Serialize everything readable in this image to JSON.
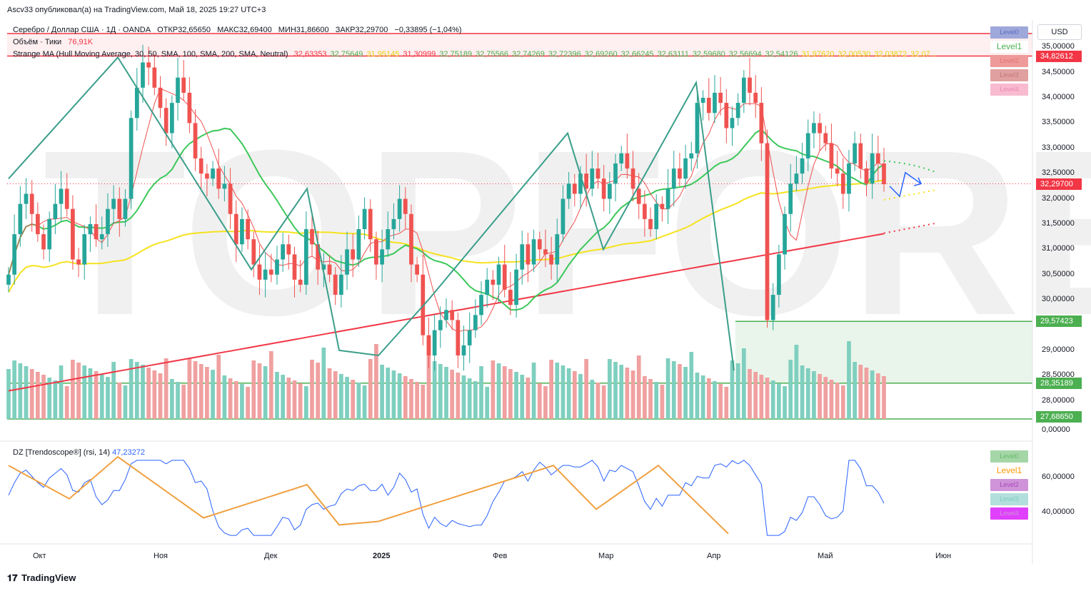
{
  "header": {
    "publisher_line": "Ascv33 опубликовал(а) на TradingView.com, Май 18, 2025 19:27 UTC+3"
  },
  "symbol_line": {
    "title": "Серебро / Доллар США · 1Д · OANDA",
    "open": "ОТКР32,65650",
    "high": "МАКС32,69400",
    "low": "МИН31,86600",
    "close": "ЗАКР32,29700",
    "change": "−0,33895 (−1,04%)"
  },
  "volume_line": {
    "label": "Объём · Тики",
    "value": "76,91K"
  },
  "ma_line": {
    "label": "Strange MA (Hull Moving Average, 30, 50, SMA, 100, SMA, 200, SMA, Neutral)",
    "values": [
      {
        "v": "32,63353",
        "color": "#f23645"
      },
      {
        "v": "32,75649",
        "color": "#4caf50"
      },
      {
        "v": "31,95145",
        "color": "#e6d30c"
      },
      {
        "v": "31,30999",
        "color": "#f23645"
      },
      {
        "v": "32,75189",
        "color": "#4caf50"
      },
      {
        "v": "32,75566",
        "color": "#4caf50"
      },
      {
        "v": "32,74269",
        "color": "#4caf50"
      },
      {
        "v": "32,72396",
        "color": "#4caf50"
      },
      {
        "v": "32,69260",
        "color": "#4caf50"
      },
      {
        "v": "32,66245",
        "color": "#4caf50"
      },
      {
        "v": "32,63111",
        "color": "#4caf50"
      },
      {
        "v": "32,59680",
        "color": "#4caf50"
      },
      {
        "v": "32,56694",
        "color": "#4caf50"
      },
      {
        "v": "32,54126",
        "color": "#4caf50"
      },
      {
        "v": "31,97620",
        "color": "#e6d30c"
      },
      {
        "v": "32,00530",
        "color": "#e6d30c"
      },
      {
        "v": "32,03872",
        "color": "#e6d30c"
      },
      {
        "v": "32,07...",
        "color": "#e6d30c"
      }
    ]
  },
  "currency": "USD",
  "price_axis": {
    "labels": [
      "35,00000",
      "34,50000",
      "34,00000",
      "33,50000",
      "33,00000",
      "32,50000",
      "32,00000",
      "31,50000",
      "31,00000",
      "30,50000",
      "30,00000",
      "29,00000",
      "28,50000",
      "28,00000",
      "0,00000"
    ],
    "values": [
      35.0,
      34.5,
      34.0,
      33.5,
      33.0,
      32.5,
      32.0,
      31.5,
      31.0,
      30.5,
      30.0,
      29.0,
      28.5,
      28.0,
      null
    ]
  },
  "price_badges": [
    {
      "label": "34,82612",
      "color": "#f23645",
      "value": 34.82612
    },
    {
      "label": "32,29700",
      "color": "#f23645",
      "value": 32.297
    },
    {
      "label": "29,57423",
      "color": "#4caf50",
      "value": 29.57423
    },
    {
      "label": "28,35189",
      "color": "#4caf50",
      "value": 28.35189
    },
    {
      "label": "27,68650",
      "color": "#4caf50",
      "value": 27.6865
    }
  ],
  "level_buttons": [
    {
      "label": "Level0",
      "bg": "#9fa8da",
      "fg": "#5c6bc0"
    },
    {
      "label": "Level1",
      "bg": "#ffffff",
      "fg": "#4caf50"
    },
    {
      "label": "Level2",
      "bg": "#ef9a9a",
      "fg": "#e57373"
    },
    {
      "label": "Level3",
      "bg": "#e0a0a0",
      "fg": "#c27878"
    },
    {
      "label": "Level4",
      "bg": "#f8bbd0",
      "fg": "#ec8ab0"
    }
  ],
  "rsi": {
    "label": "DZ [Trendoscope®] (rsi, 14)",
    "value": "47,23272",
    "axis_labels": [
      "60,00000",
      "40,00000"
    ],
    "axis_values": [
      60,
      40
    ],
    "level_buttons": [
      {
        "label": "Level0",
        "bg": "#a5d6a7",
        "fg": "#66bb6a"
      },
      {
        "label": "Level1",
        "bg": "#ffffff",
        "fg": "#ff9800"
      },
      {
        "label": "Level2",
        "bg": "#ce93d8",
        "fg": "#ab47bc"
      },
      {
        "label": "Level3",
        "bg": "#b2dfdb",
        "fg": "#80cbc4"
      },
      {
        "label": "Level4",
        "bg": "#e040fb",
        "fg": "#ce93d8"
      }
    ]
  },
  "time_axis": [
    "Окт",
    "Ноя",
    "Дек",
    "2025",
    "Фев",
    "Мар",
    "Апр",
    "Май",
    "Июн"
  ],
  "watermark": "TOPFOREX.COM",
  "branding": "TradingView",
  "chart_data": {
    "type": "candlestick",
    "symbol": "Серебро / Доллар США",
    "interval": "1Д",
    "ylim": [
      27.6,
      35.3
    ],
    "closes": [
      30.5,
      31.3,
      31.9,
      32.1,
      31.7,
      31.3,
      31.0,
      31.6,
      31.9,
      32.2,
      31.8,
      30.8,
      30.7,
      31.3,
      31.5,
      31.2,
      31.3,
      31.8,
      32.0,
      31.6,
      32.0,
      33.6,
      34.2,
      34.7,
      34.6,
      34.2,
      33.8,
      33.3,
      33.9,
      34.4,
      34.1,
      33.5,
      32.8,
      32.5,
      32.4,
      32.6,
      32.2,
      32.3,
      31.7,
      31.1,
      31.6,
      31.2,
      30.7,
      30.4,
      30.6,
      30.5,
      30.8,
      31.1,
      30.9,
      30.4,
      30.3,
      31.4,
      31.1,
      30.6,
      30.7,
      30.5,
      30.1,
      30.5,
      31.0,
      30.8,
      31.4,
      31.8,
      31.2,
      30.7,
      31.0,
      31.4,
      31.6,
      32.0,
      31.7,
      30.7,
      30.5,
      29.3,
      28.9,
      29.4,
      29.6,
      29.8,
      29.6,
      28.9,
      29.1,
      29.4,
      29.7,
      30.1,
      30.4,
      30.3,
      30.7,
      30.2,
      29.9,
      30.6,
      31.1,
      30.7,
      31.2,
      31.0,
      30.9,
      30.7,
      31.3,
      32.0,
      32.3,
      32.1,
      32.5,
      32.2,
      32.6,
      32.4,
      32.0,
      32.3,
      32.7,
      32.9,
      32.6,
      32.2,
      31.9,
      31.6,
      31.4,
      31.9,
      31.8,
      32.2,
      32.6,
      32.4,
      32.8,
      32.9,
      33.9,
      34.0,
      33.7,
      34.1,
      33.9,
      33.4,
      33.6,
      33.9,
      34.4,
      34.1,
      33.9,
      33.1,
      29.6,
      30.1,
      30.9,
      31.7,
      32.3,
      32.5,
      32.8,
      33.3,
      33.5,
      33.3,
      33.1,
      32.6,
      32.5,
      32.1,
      32.7,
      33.1,
      32.6,
      32.3,
      32.9,
      32.7,
      32.29
    ],
    "hull_ma_30": 32.63353,
    "sma_50": 32.75649,
    "sma_100": 31.95145,
    "sma_200": 31.30999,
    "support_zone": [
      28.35189,
      29.57423
    ],
    "resistance_line": 34.82612,
    "last_close": 32.297
  }
}
